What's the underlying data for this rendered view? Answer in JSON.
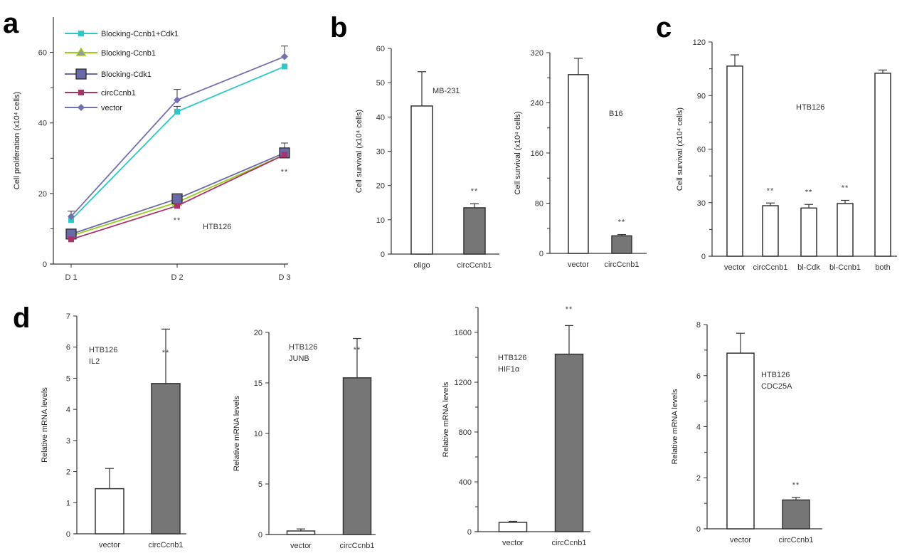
{
  "figure": {
    "panel_letters": [
      "a",
      "b",
      "c",
      "d"
    ]
  },
  "colors": {
    "open_bar": "#ffffff",
    "filled_bar": "#767676",
    "bar_stroke": "#333333",
    "axis": "#333333"
  },
  "chart_data": [
    {
      "id": "a",
      "type": "line",
      "title": "",
      "xlabel": "",
      "ylabel": "Cell proliferation (x10⁴ cells)",
      "categories": [
        "D 1",
        "D 2",
        "D 3"
      ],
      "ylim": [
        0,
        70
      ],
      "yticks": [
        0,
        20,
        40,
        60
      ],
      "minor_yticks": [
        10,
        30,
        50
      ],
      "annotation": "HTB126",
      "significance": [
        {
          "category": "D 2",
          "label": "**"
        },
        {
          "category": "D 3",
          "label": "**"
        }
      ],
      "series": [
        {
          "name": "Blocking-Ccnb1+Cdk1",
          "color": "#2ec8c8",
          "marker": "square-small",
          "values": [
            12.5,
            43.2,
            56.0
          ],
          "errors": [
            null,
            1.5,
            null
          ]
        },
        {
          "name": "Blocking-Ccnb1",
          "color": "#9acd1a",
          "marker": "triangle",
          "values": [
            8.0,
            17.5,
            31.0
          ],
          "errors": [
            null,
            null,
            null
          ]
        },
        {
          "name": "Blocking-Cdk1",
          "color": "#6b6aa8",
          "marker": "square-large",
          "values": [
            8.5,
            18.5,
            31.5
          ],
          "errors": [
            null,
            null,
            2.8
          ]
        },
        {
          "name": "circCcnb1",
          "color": "#a8336b",
          "marker": "square-small",
          "values": [
            7.0,
            16.5,
            31.0
          ],
          "errors": [
            null,
            null,
            null
          ]
        },
        {
          "name": "vector",
          "color": "#7370b0",
          "marker": "diamond",
          "values": [
            13.5,
            46.5,
            58.8
          ],
          "errors": [
            1.5,
            3.0,
            3.0
          ]
        }
      ]
    },
    {
      "id": "b1",
      "type": "bar",
      "ylabel": "Cell survival (x10⁴ cells)",
      "categories": [
        "oligo",
        "circCcnb1"
      ],
      "values": [
        43.2,
        13.5
      ],
      "errors": [
        10.0,
        1.2
      ],
      "fills": [
        "open",
        "filled"
      ],
      "ylim": [
        0,
        60
      ],
      "yticks": [
        0,
        10,
        20,
        30,
        40,
        50,
        60
      ],
      "annotation": "MB-231",
      "significance": [
        null,
        "**"
      ]
    },
    {
      "id": "b2",
      "type": "bar",
      "ylabel": "Cell survival (x10⁴ cells)",
      "categories": [
        "vector",
        "circCcnb1"
      ],
      "values": [
        285,
        28
      ],
      "errors": [
        26,
        2
      ],
      "fills": [
        "open",
        "filled"
      ],
      "ylim": [
        0,
        320
      ],
      "yticks": [
        0,
        80,
        160,
        240,
        320
      ],
      "minor_yticks": [
        40,
        120,
        200,
        280
      ],
      "annotation": "B16",
      "significance": [
        null,
        "**"
      ]
    },
    {
      "id": "c",
      "type": "bar",
      "ylabel": "Cell survival (x10⁴ cells)",
      "categories": [
        "vector",
        "circCcnb1",
        "bl-Cdk",
        "bl-Ccnb1",
        "both"
      ],
      "values": [
        106.5,
        28.3,
        27.0,
        29.5,
        102.5
      ],
      "errors": [
        6.3,
        1.5,
        2.0,
        1.8,
        1.8
      ],
      "fills": [
        "open",
        "open",
        "open",
        "open",
        "open"
      ],
      "ylim": [
        0,
        120
      ],
      "yticks": [
        0,
        30,
        60,
        90,
        120
      ],
      "minor_yticks": [
        15,
        45,
        75,
        105
      ],
      "annotation": "HTB126",
      "significance": [
        null,
        "**",
        "**",
        "**",
        null
      ]
    },
    {
      "id": "d1",
      "type": "bar",
      "ylabel": "Relative mRNA levels",
      "categories": [
        "vector",
        "circCcnb1"
      ],
      "values": [
        1.45,
        4.83
      ],
      "errors": [
        0.65,
        1.75
      ],
      "fills": [
        "open",
        "filled"
      ],
      "ylim": [
        0,
        7
      ],
      "yticks": [
        0,
        1,
        2,
        3,
        4,
        5,
        6,
        7
      ],
      "annotation": [
        "HTB126",
        "IL2"
      ],
      "significance": [
        null,
        "**"
      ]
    },
    {
      "id": "d2",
      "type": "bar",
      "ylabel": "Relative mRNA levels",
      "categories": [
        "vector",
        "circCcnb1"
      ],
      "values": [
        0.35,
        15.5
      ],
      "errors": [
        0.2,
        3.9
      ],
      "fills": [
        "open",
        "filled"
      ],
      "ylim": [
        0,
        20
      ],
      "yticks": [
        0,
        5,
        10,
        15,
        20
      ],
      "annotation": [
        "HTB126",
        "JUNB"
      ],
      "significance": [
        null,
        "**"
      ]
    },
    {
      "id": "d3",
      "type": "bar",
      "ylabel": "Relative mRNA levels",
      "categories": [
        "vector",
        "circCcnb1"
      ],
      "values": [
        75,
        1425
      ],
      "errors": [
        8,
        230
      ],
      "fills": [
        "open",
        "filled"
      ],
      "ylim": [
        0,
        1800
      ],
      "yticks": [
        0,
        400,
        800,
        1200,
        1600
      ],
      "minor_yticks": [
        200,
        600,
        1000,
        1400,
        1800
      ],
      "annotation": [
        "HTB126",
        "HIF1α"
      ],
      "significance": [
        null,
        "**"
      ]
    },
    {
      "id": "d4",
      "type": "bar",
      "ylabel": "Relative mRNA levels",
      "categories": [
        "vector",
        "circCcnb1"
      ],
      "values": [
        6.88,
        1.13
      ],
      "errors": [
        0.78,
        0.1
      ],
      "fills": [
        "open",
        "filled"
      ],
      "ylim": [
        0,
        8
      ],
      "yticks": [
        0,
        2,
        4,
        6,
        8
      ],
      "minor_yticks": [
        1,
        3,
        5,
        7
      ],
      "annotation": [
        "HTB126",
        "CDC25A"
      ],
      "significance": [
        null,
        "**"
      ]
    }
  ]
}
